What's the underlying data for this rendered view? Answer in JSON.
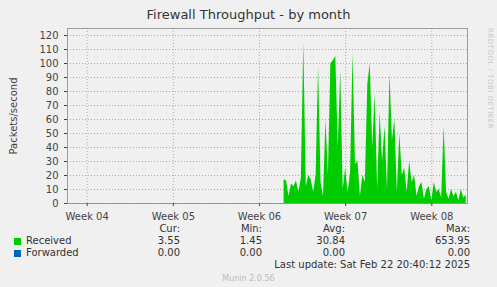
{
  "chart_data": {
    "type": "area",
    "title": "Firewall Throughput - by month",
    "y_label": "Packets/second",
    "side_text": "RRDTOOL / TOBI OETIKER",
    "x": [
      17.6,
      17.8,
      18.0,
      18.2,
      18.4,
      18.6,
      18.8,
      19.0,
      19.2,
      19.4,
      19.6,
      19.8,
      20.0,
      20.2,
      20.4,
      20.6,
      20.8,
      21.0,
      21.2,
      21.4,
      21.6,
      21.8,
      22.0,
      22.2,
      22.4,
      22.6,
      22.8,
      23.0,
      23.2,
      23.4,
      23.6,
      23.8,
      24.0,
      24.2,
      24.4,
      24.6,
      24.8,
      25.0,
      25.2,
      25.4,
      25.6,
      25.8,
      26.0,
      26.2,
      26.4,
      26.6,
      26.8,
      27.0,
      27.2,
      27.4,
      27.6,
      27.8,
      28.0,
      28.2,
      28.4,
      28.6,
      28.8,
      29.0,
      29.2,
      29.4,
      29.6,
      29.8,
      30.0,
      30.2,
      30.4,
      30.6,
      30.8,
      31.0,
      31.2,
      31.4,
      31.6,
      31.8,
      32.0,
      32.2,
      32.4
    ],
    "series": [
      {
        "name": "Received",
        "color": "#00cc00",
        "values": [
          17,
          16,
          5,
          14,
          12,
          16,
          8,
          18,
          115,
          12,
          20,
          17,
          8,
          20,
          98,
          15,
          5,
          60,
          20,
          100,
          102,
          105,
          40,
          95,
          10,
          25,
          8,
          22,
          107,
          28,
          30,
          5,
          20,
          15,
          85,
          100,
          40,
          78,
          10,
          65,
          30,
          55,
          10,
          93,
          45,
          60,
          8,
          50,
          20,
          25,
          8,
          30,
          15,
          20,
          5,
          12,
          15,
          3,
          10,
          12,
          2,
          15,
          8,
          10,
          4,
          55,
          8,
          3,
          10,
          5,
          8,
          2,
          10,
          4,
          6
        ]
      },
      {
        "name": "Forwarded",
        "color": "#0066b3",
        "values": [
          0,
          0,
          0,
          0,
          0,
          0,
          0,
          0,
          0,
          0,
          0,
          0,
          0,
          0,
          0,
          0,
          0,
          0,
          0,
          0,
          0,
          0,
          0,
          0,
          0,
          0,
          0,
          0,
          0,
          0,
          0,
          0,
          0,
          0,
          0,
          0,
          0,
          0,
          0,
          0,
          0,
          0,
          0,
          0,
          0,
          0,
          0,
          0,
          0,
          0,
          0,
          0,
          0,
          0,
          0,
          0,
          0,
          0,
          0,
          0,
          0,
          0,
          0,
          0,
          0,
          0,
          0,
          0,
          0,
          0,
          0,
          0,
          0,
          0,
          0
        ]
      }
    ],
    "xlim": [
      0,
      32.5
    ],
    "xticks": [
      {
        "value": 1.6,
        "label": "Week 04"
      },
      {
        "value": 8.6,
        "label": "Week 05"
      },
      {
        "value": 15.6,
        "label": "Week 06"
      },
      {
        "value": 22.6,
        "label": "Week 07"
      },
      {
        "value": 29.6,
        "label": "Week 08"
      }
    ],
    "ylim": [
      0,
      125
    ],
    "yticks": [
      0,
      10,
      20,
      30,
      40,
      50,
      60,
      70,
      80,
      90,
      100,
      110,
      120
    ],
    "grid": true,
    "legend_table": {
      "columns": [
        "Cur:",
        "Min:",
        "Avg:",
        "Max:"
      ],
      "rows": [
        {
          "name": "Received",
          "cells": [
            "3.55",
            "1.45",
            "30.84",
            "653.95"
          ]
        },
        {
          "name": "Forwarded",
          "cells": [
            "0.00",
            "0.00",
            "0.00",
            "0.00"
          ]
        }
      ]
    },
    "last_update": "Last update: Sat Feb 22 20:40:12 2025",
    "footer": "Munin 2.0.56"
  }
}
